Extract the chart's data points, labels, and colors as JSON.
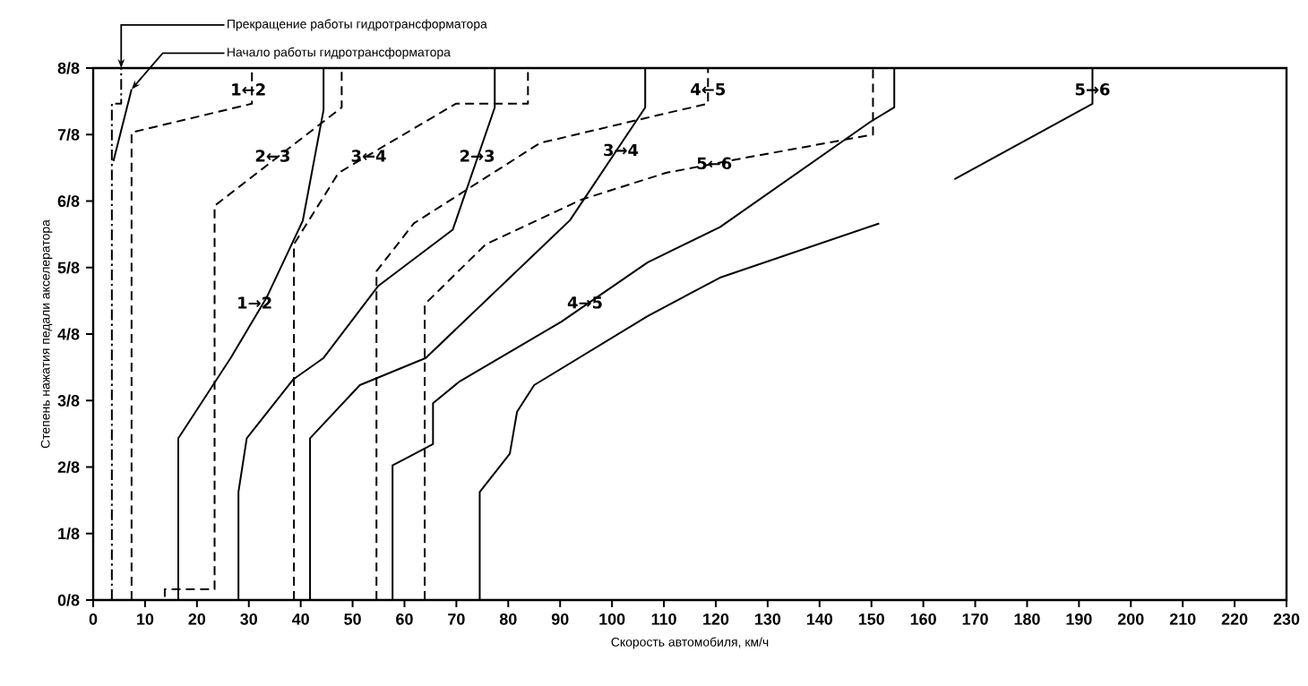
{
  "chart_data": {
    "type": "line",
    "xlabel": "Скорость автомобиля, км/ч",
    "ylabel": "Степень нажатия педали акселератора",
    "xlim": [
      0,
      230
    ],
    "ylim": [
      0,
      1
    ],
    "xticks": [
      0,
      10,
      20,
      30,
      40,
      50,
      60,
      70,
      80,
      90,
      100,
      110,
      120,
      130,
      140,
      150,
      160,
      170,
      180,
      190,
      200,
      210,
      220,
      230
    ],
    "yticks": [
      {
        "value": 0,
        "label": "0/8"
      },
      {
        "value": 0.125,
        "label": "1/8"
      },
      {
        "value": 0.25,
        "label": "2/8"
      },
      {
        "value": 0.375,
        "label": "3/8"
      },
      {
        "value": 0.5,
        "label": "4/8"
      },
      {
        "value": 0.625,
        "label": "5/8"
      },
      {
        "value": 0.75,
        "label": "6/8"
      },
      {
        "value": 0.875,
        "label": "7/8"
      },
      {
        "value": 1,
        "label": "8/8"
      }
    ],
    "series": [
      {
        "color": "#000000",
        "line_style": "dashdot",
        "x": [
          3.6,
          3.6,
          5.4,
          5.4
        ],
        "values": [
          0,
          0.933,
          0.933,
          1
        ]
      },
      {
        "color": "#000000",
        "line_style": "solid",
        "x": [
          3.9,
          7.4
        ],
        "values": [
          0.825,
          0.96
        ]
      },
      {
        "color": "#000000",
        "line_style": "solid",
        "x": [
          16.4,
          16.4,
          26.5,
          33.4,
          40.4,
          44.4,
          44.4
        ],
        "values": [
          0,
          0.304,
          0.455,
          0.568,
          0.713,
          0.921,
          1
        ]
      },
      {
        "color": "#000000",
        "line_style": "solid",
        "x": [
          28.0,
          28.0,
          29.6,
          38.6,
          44.4,
          54.9,
          69.3,
          77.4,
          77.4
        ],
        "values": [
          0,
          0.203,
          0.304,
          0.415,
          0.455,
          0.59,
          0.696,
          0.926,
          1
        ]
      },
      {
        "color": "#000000",
        "line_style": "solid",
        "x": [
          41.8,
          41.8,
          51.4,
          64.1,
          91.9,
          106.4,
          106.4
        ],
        "values": [
          0,
          0.304,
          0.404,
          0.455,
          0.714,
          0.926,
          1
        ]
      },
      {
        "color": "#000000",
        "line_style": "solid",
        "x": [
          57.7,
          57.7,
          65.5,
          65.5,
          70.5,
          90.2,
          106.9,
          120.8,
          149.8,
          154.4,
          154.4
        ],
        "values": [
          0,
          0.253,
          0.293,
          0.37,
          0.41,
          0.523,
          0.635,
          0.701,
          0.899,
          0.926,
          1
        ]
      },
      {
        "color": "#000000",
        "line_style": "solid",
        "x": [
          74.5,
          74.5,
          80.3,
          81.7,
          85.0,
          106.9,
          120.8,
          151.5,
          158.0,
          166.0,
          192.6,
          192.6
        ],
        "values": [
          0,
          0.203,
          0.275,
          0.354,
          0.404,
          0.534,
          0.606,
          0.708,
          null,
          0.791,
          0.933,
          1
        ]
      },
      {
        "color": "#000000",
        "line_style": "dashed",
        "x": [
          7.4,
          7.4,
          30.6,
          30.6
        ],
        "values": [
          0,
          0.879,
          0.933,
          1
        ]
      },
      {
        "color": "#000000",
        "line_style": "dashed",
        "x": [
          13.8,
          13.8,
          23.4,
          23.4,
          47.9,
          47.9
        ],
        "values": [
          0.006,
          0.02,
          0.02,
          0.741,
          0.926,
          1
        ]
      },
      {
        "color": "#000000",
        "line_style": "dashed",
        "x": [
          38.7,
          38.7,
          47.3,
          69.9,
          83.8,
          83.8
        ],
        "values": [
          0,
          0.669,
          0.803,
          0.933,
          0.933,
          1
        ]
      },
      {
        "color": "#000000",
        "line_style": "dashed",
        "x": [
          54.6,
          54.6,
          61.8,
          86.1,
          110.4,
          118.5,
          118.5
        ],
        "values": [
          0,
          0.618,
          0.708,
          0.859,
          0.915,
          0.933,
          1
        ]
      },
      {
        "color": "#000000",
        "line_style": "dashed",
        "x": [
          63.9,
          63.9,
          75.7,
          94.2,
          110.4,
          125.5,
          150.3,
          150.3
        ],
        "values": [
          0,
          0.556,
          0.669,
          0.753,
          0.803,
          0.831,
          0.875,
          1
        ]
      }
    ],
    "annotations": [
      {
        "text": "Прекращение работы гидротрансформатора",
        "x": 5.4,
        "y": 1
      },
      {
        "text": "Начало работы гидротрансформатора",
        "x": 7.4,
        "y": 0.96
      },
      {
        "text": "1←2",
        "x": 29.9,
        "y": 0.96
      },
      {
        "text": "2←3",
        "x": 34.6,
        "y": 0.835
      },
      {
        "text": "3←4",
        "x": 53.1,
        "y": 0.835
      },
      {
        "text": "2→3",
        "x": 74.0,
        "y": 0.835
      },
      {
        "text": "3→4",
        "x": 101.7,
        "y": 0.846
      },
      {
        "text": "1→2",
        "x": 31.1,
        "y": 0.559
      },
      {
        "text": "4→5",
        "x": 94.8,
        "y": 0.559
      },
      {
        "text": "4←5",
        "x": 118.5,
        "y": 0.96
      },
      {
        "text": "5←6",
        "x": 119.7,
        "y": 0.821
      },
      {
        "text": "5→6",
        "x": 192.6,
        "y": 0.96
      }
    ]
  }
}
